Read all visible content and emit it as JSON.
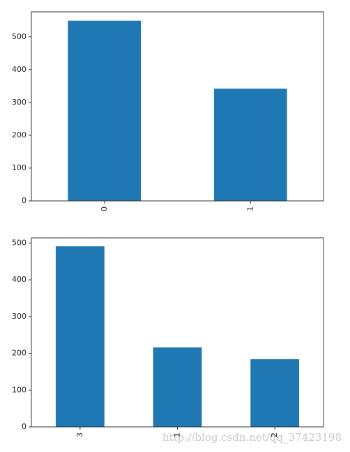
{
  "chart_data": [
    {
      "type": "bar",
      "categories": [
        "0",
        "1"
      ],
      "values": [
        549,
        342
      ],
      "color": "#1f77b4",
      "ylim": [
        0,
        576
      ],
      "yticks": [
        0,
        100,
        200,
        300,
        400,
        500
      ],
      "grid": false
    },
    {
      "type": "bar",
      "categories": [
        "3",
        "1",
        "2"
      ],
      "values": [
        491,
        216,
        184
      ],
      "color": "#1f77b4",
      "ylim": [
        0,
        514
      ],
      "yticks": [
        0,
        100,
        200,
        300,
        400,
        500
      ],
      "grid": false
    }
  ],
  "watermark": "http://blog.csdn.net/qq_37423198"
}
